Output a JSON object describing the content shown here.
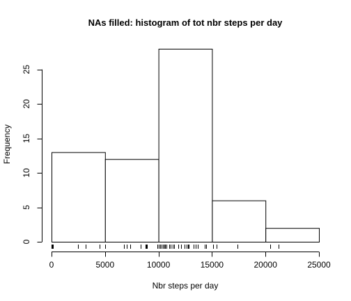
{
  "chart_data": {
    "type": "bar",
    "title": "NAs filled: histogram of tot nbr steps per day",
    "xlabel": "Nbr steps per day",
    "ylabel": "Frequency",
    "bins": [
      {
        "from": 0,
        "to": 5000,
        "count": 13
      },
      {
        "from": 5000,
        "to": 10000,
        "count": 12
      },
      {
        "from": 10000,
        "to": 15000,
        "count": 28
      },
      {
        "from": 15000,
        "to": 20000,
        "count": 6
      },
      {
        "from": 20000,
        "to": 25000,
        "count": 2
      }
    ],
    "xlim": [
      0,
      25000
    ],
    "ylim": [
      0,
      28
    ],
    "x_ticks": [
      0,
      5000,
      10000,
      15000,
      20000,
      25000
    ],
    "y_ticks": [
      0,
      5,
      10,
      15,
      20,
      25
    ],
    "rug": [
      0,
      41,
      126,
      2492,
      3219,
      4472,
      5018,
      6778,
      7047,
      7336,
      8334,
      8821,
      8841,
      8918,
      9900,
      10056,
      10139,
      10183,
      10304,
      10395,
      10439,
      10571,
      10600,
      10765,
      10766,
      11015,
      11162,
      11352,
      11458,
      11829,
      11834,
      12116,
      12426,
      12608,
      12787,
      12811,
      13294,
      13452,
      13460,
      13646,
      14339,
      14478,
      15084,
      15098,
      15110,
      15414,
      17382,
      20427,
      21194
    ],
    "grid": false,
    "legend": "none"
  }
}
